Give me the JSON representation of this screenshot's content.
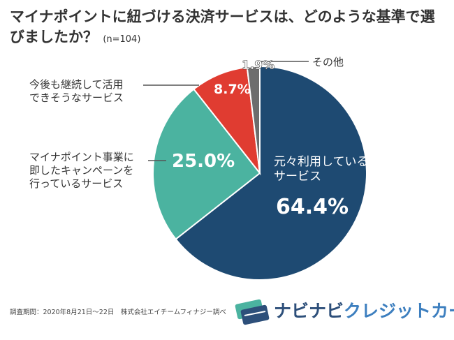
{
  "chart_data": {
    "type": "pie",
    "title": "マイナポイントに紐づける決済サービスは、どのような基準で選びましたか？",
    "subtitle": "(n=104)",
    "categories": [
      "元々利用しているサービス",
      "マイナポイント事業に即したキャンペーンを行っているサービス",
      "今後も継続して活用できそうなサービス",
      "その他"
    ],
    "values": [
      64.4,
      25.0,
      8.7,
      1.9
    ],
    "value_labels": [
      "64.4%",
      "25.0%",
      "8.7%",
      "1.9%"
    ],
    "colors": [
      "#1e4a72",
      "#4bb3a0",
      "#e03c31",
      "#6d6d6d"
    ],
    "note": "調査期間：2020年8月21日～22日　株式会社エイチームフィナジー調べ"
  },
  "logo": {
    "parts": [
      "ナビナビ",
      "クレジットカード"
    ]
  }
}
